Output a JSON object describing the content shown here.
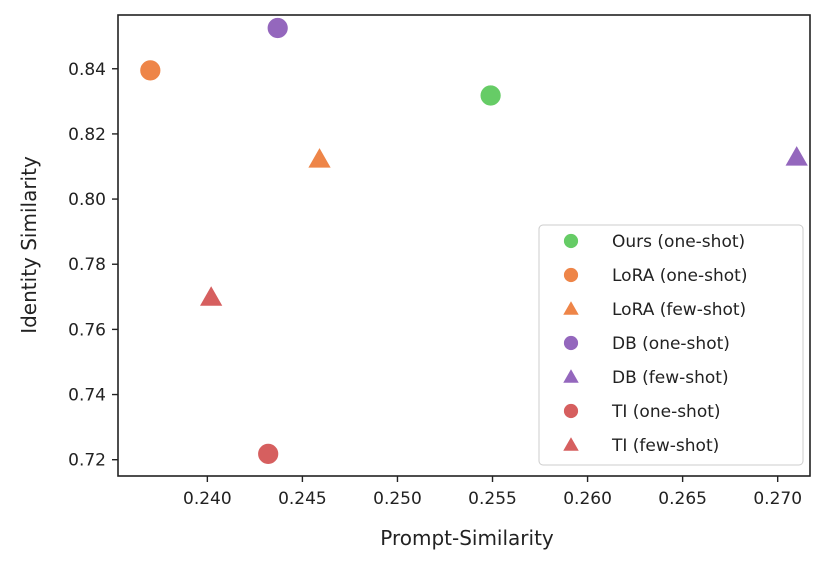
{
  "chart_data": {
    "type": "scatter",
    "title": "",
    "xlabel": "Prompt-Similarity",
    "ylabel": "Identity Similarity",
    "xlim": [
      0.2353,
      0.2717
    ],
    "ylim": [
      0.715,
      0.8565
    ],
    "grid": false,
    "legend_position": "lower-right",
    "x_ticks": [
      0.24,
      0.245,
      0.25,
      0.255,
      0.26,
      0.265,
      0.27
    ],
    "x_tick_labels": [
      "0.240",
      "0.245",
      "0.250",
      "0.255",
      "0.260",
      "0.265",
      "0.270"
    ],
    "y_ticks": [
      0.72,
      0.74,
      0.76,
      0.78,
      0.8,
      0.82,
      0.84
    ],
    "y_tick_labels": [
      "0.72",
      "0.74",
      "0.76",
      "0.78",
      "0.80",
      "0.82",
      "0.84"
    ],
    "series": [
      {
        "name": "Ours (one-shot)",
        "marker": "circle",
        "color": "#66cc66",
        "x": 0.2549,
        "y": 0.8318
      },
      {
        "name": "LoRA (one-shot)",
        "marker": "circle",
        "color": "#ee8548",
        "x": 0.237,
        "y": 0.8395
      },
      {
        "name": "LoRA (few-shot)",
        "marker": "triangle",
        "color": "#ee8548",
        "x": 0.2459,
        "y": 0.8122
      },
      {
        "name": "DB (one-shot)",
        "marker": "circle",
        "color": "#9467bd",
        "x": 0.2437,
        "y": 0.8525
      },
      {
        "name": "DB (few-shot)",
        "marker": "triangle",
        "color": "#9467bd",
        "x": 0.271,
        "y": 0.8128
      },
      {
        "name": "TI (one-shot)",
        "marker": "circle",
        "color": "#d65f5f",
        "x": 0.2432,
        "y": 0.7218
      },
      {
        "name": "TI (few-shot)",
        "marker": "triangle",
        "color": "#d65f5f",
        "x": 0.2402,
        "y": 0.7698
      }
    ]
  }
}
